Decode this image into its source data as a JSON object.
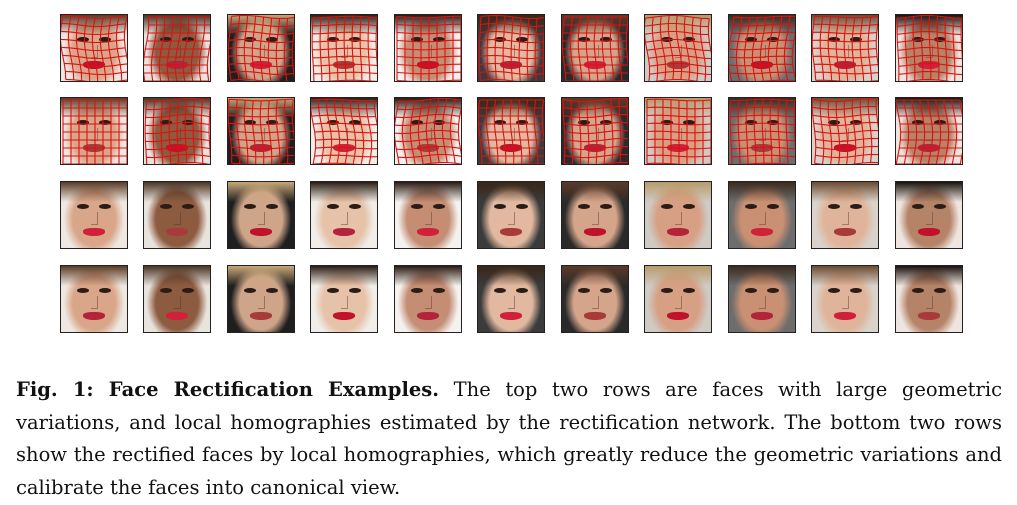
{
  "figure": {
    "caption_lead": "Fig. 1: Face Rectification Examples.",
    "caption_body": "The top two rows are faces with large geometric variations, and local homographies estimated by the rectification network. The bottom two rows show the rectified faces by local homographies, which greatly reduce the geometric variations and calibrate the faces into canonical view."
  },
  "colors": {
    "mesh": "#e01010",
    "border": "#222222"
  },
  "rows": [
    {
      "kind": "input-with-homography-mesh",
      "count": 11
    },
    {
      "kind": "input-with-homography-mesh",
      "count": 11
    },
    {
      "kind": "rectified",
      "count": 11
    },
    {
      "kind": "rectified",
      "count": 11
    }
  ]
}
